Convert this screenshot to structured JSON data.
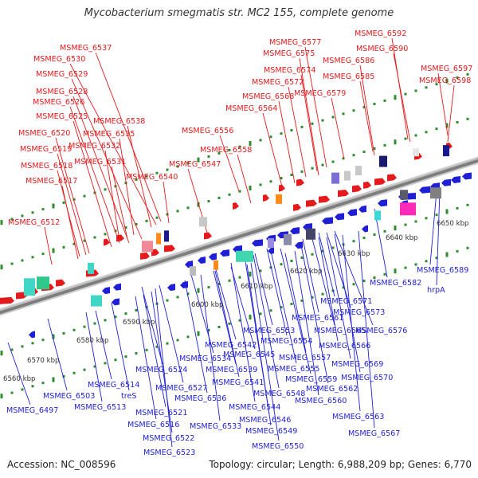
{
  "title": "Mycobacterium smegmatis str. MC2 155, complete genome",
  "footer": {
    "accession": "Accession: NC_008596",
    "topology": "Topology: circular; Length: 6,988,209 bp; Genes: 6,770"
  },
  "colors": {
    "forward": "#e41a1c",
    "reverse": "#1f1fd6",
    "tick": "#2e8b2e",
    "backbone": "#8a8a8a"
  },
  "scale_labels": [
    "6560 kbp",
    "6570 kbp",
    "6580 kbp",
    "6590 kbp",
    "6600 kbp",
    "6610 kbp",
    "6620 kbp",
    "6630 kbp",
    "6640 kbp",
    "6650 kbp"
  ],
  "forward_labels": [
    "MSMEG_6537",
    "MSMEG_6530",
    "MSMEG_6529",
    "MSMEG_6528",
    "MSMEG_6526",
    "MSMEG_6525",
    "MSMEG_6538",
    "MSMEG_6520",
    "MSMEG_6535",
    "MSMEG_6532",
    "MSMEG_6519",
    "MSMEG_6531",
    "MSMEG_6518",
    "MSMEG_6540",
    "MSMEG_6517",
    "MSMEG_6547",
    "MSMEG_6512",
    "MSMEG_6556",
    "MSMEG_6558",
    "MSMEG_6577",
    "MSMEG_6575",
    "MSMEG_6574",
    "MSMEG_6572",
    "MSMEG_6568",
    "MSMEG_6564",
    "MSMEG_6579",
    "MSMEG_6592",
    "MSMEG_6590",
    "MSMEG_6586",
    "MSMEG_6585",
    "MSMEG_6597",
    "MSMEG_6598"
  ],
  "reverse_labels": [
    "MSMEG_6589",
    "hrpA",
    "MSMEG_6582",
    "MSMEG_6571",
    "MSMEG_6573",
    "MSMEG_6576",
    "MSMEG_6561",
    "MSMEG_6565",
    "MSMEG_6553",
    "MSMEG_6554",
    "MSMEG_6566",
    "MSMEG_6542",
    "MSMEG_6557",
    "MSMEG_6545",
    "MSMEG_6534",
    "MSMEG_6569",
    "MSMEG_6555",
    "MSMEG_6539",
    "MSMEG_6559",
    "MSMEG_6570",
    "MSMEG_6524",
    "MSMEG_6541",
    "MSMEG_6562",
    "MSMEG_6514",
    "MSMEG_6527",
    "MSMEG_6548",
    "MSMEG_6560",
    "MSMEG_6503",
    "treS",
    "MSMEG_6536",
    "MSMEG_6544",
    "MSMEG_6497",
    "MSMEG_6513",
    "MSMEG_6521",
    "MSMEG_6563",
    "MSMEG_6546",
    "MSMEG_6516",
    "MSMEG_6533",
    "MSMEG_6549",
    "MSMEG_6567",
    "MSMEG_6522",
    "MSMEG_6550",
    "MSMEG_6523"
  ]
}
